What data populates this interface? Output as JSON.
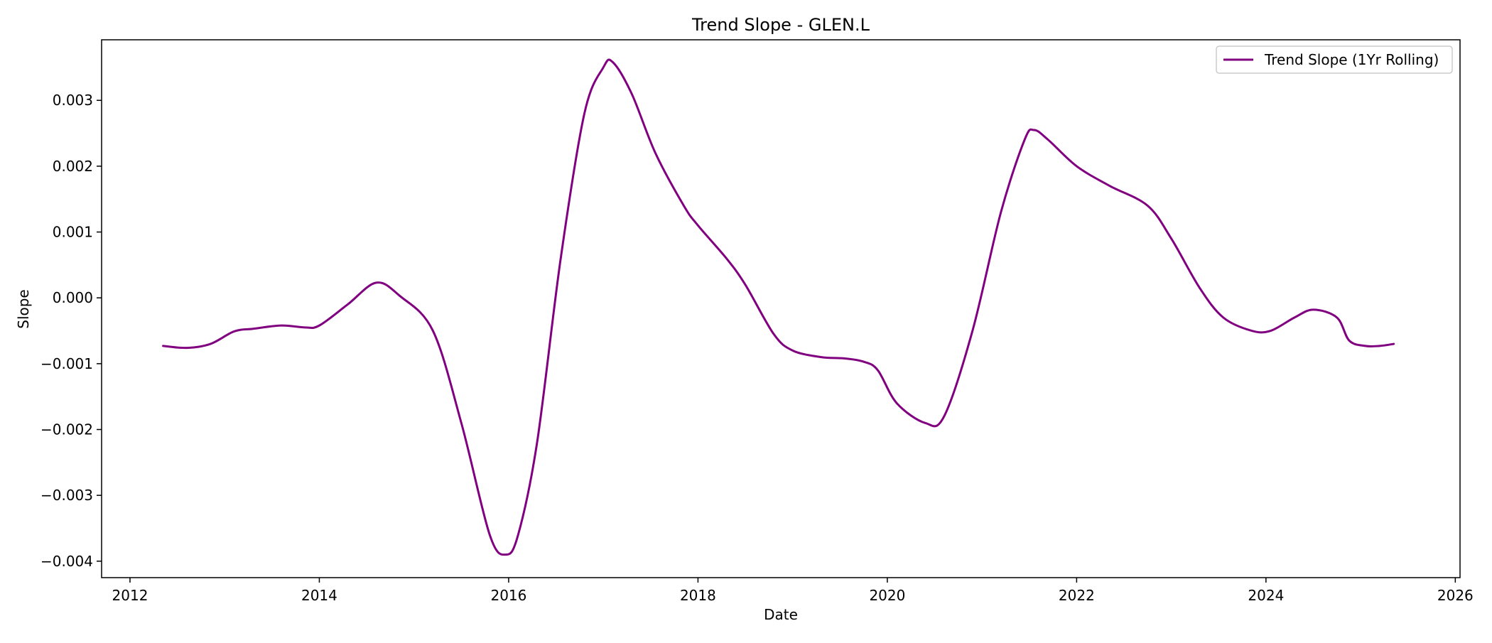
{
  "chart_data": {
    "type": "line",
    "title": "Trend Slope - GLEN.L",
    "xlabel": "Date",
    "ylabel": "Slope",
    "xlim": [
      2011.7,
      2026.05
    ],
    "ylim": [
      -0.00425,
      0.00392
    ],
    "x_ticks": [
      2012,
      2014,
      2016,
      2018,
      2020,
      2022,
      2024,
      2026
    ],
    "x_tick_labels": [
      "2012",
      "2014",
      "2016",
      "2018",
      "2020",
      "2022",
      "2024",
      "2026"
    ],
    "y_ticks": [
      -0.004,
      -0.003,
      -0.002,
      -0.001,
      0.0,
      0.001,
      0.002,
      0.003
    ],
    "y_tick_labels": [
      "−0.004",
      "−0.003",
      "−0.002",
      "−0.001",
      "0.000",
      "0.001",
      "0.002",
      "0.003"
    ],
    "grid": false,
    "legend_position": "top-right",
    "series": [
      {
        "name": "Trend Slope (1Yr Rolling)",
        "color": "#800080",
        "x": [
          2012.35,
          2012.6,
          2012.85,
          2013.1,
          2013.3,
          2013.6,
          2013.85,
          2014.0,
          2014.3,
          2014.6,
          2014.85,
          2015.2,
          2015.5,
          2015.8,
          2015.97,
          2016.1,
          2016.3,
          2016.55,
          2016.8,
          2017.0,
          2017.1,
          2017.3,
          2017.55,
          2017.85,
          2018.0,
          2018.3,
          2018.5,
          2018.8,
          2019.0,
          2019.3,
          2019.55,
          2019.75,
          2019.9,
          2020.1,
          2020.4,
          2020.6,
          2020.9,
          2021.2,
          2021.45,
          2021.55,
          2021.7,
          2022.0,
          2022.35,
          2022.75,
          2023.0,
          2023.3,
          2023.55,
          2023.85,
          2024.05,
          2024.3,
          2024.5,
          2024.75,
          2024.88,
          2025.05,
          2025.2,
          2025.35
        ],
        "y": [
          -0.00073,
          -0.00076,
          -0.0007,
          -0.00051,
          -0.00047,
          -0.00042,
          -0.00045,
          -0.00042,
          -0.0001,
          0.00023,
          3e-05,
          -0.0005,
          -0.0019,
          -0.0036,
          -0.0039,
          -0.0036,
          -0.0022,
          0.0006,
          0.0028,
          0.0035,
          0.00358,
          0.0031,
          0.0022,
          0.0014,
          0.0011,
          0.0006,
          0.0002,
          -0.00055,
          -0.0008,
          -0.0009,
          -0.00092,
          -0.00097,
          -0.0011,
          -0.0016,
          -0.0019,
          -0.0018,
          -0.0005,
          0.0013,
          0.0024,
          0.00255,
          0.0024,
          0.002,
          0.0017,
          0.0014,
          0.0009,
          0.00015,
          -0.0003,
          -0.0005,
          -0.0005,
          -0.0003,
          -0.00018,
          -0.0003,
          -0.00065,
          -0.00073,
          -0.00073,
          -0.0007
        ]
      }
    ]
  }
}
